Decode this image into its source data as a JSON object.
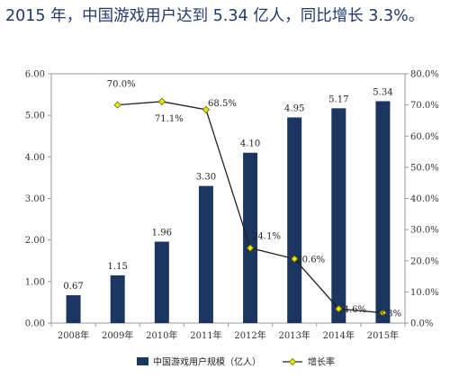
{
  "headline": "2015 年，中国游戏用户达到 5.34 亿人，同比增长 3.3%。",
  "colors": {
    "bar": "#1c3662",
    "line": "#222222",
    "marker": "#e8e600",
    "marker_stroke": "#6b6b00",
    "frame": "#9a9a9a",
    "grid": "#d9d9d9"
  },
  "chart_data": {
    "type": "bar+line",
    "categories": [
      "2008年",
      "2009年",
      "2010年",
      "2011年",
      "2012年",
      "2013年",
      "2014年",
      "2015年"
    ],
    "series": [
      {
        "name": "中国游戏用户规模（亿人）",
        "type": "bar",
        "axis": "left",
        "values": [
          0.67,
          1.15,
          1.96,
          3.3,
          4.1,
          4.95,
          5.17,
          5.34
        ],
        "labels": [
          "0.67",
          "1.15",
          "1.96",
          "3.30",
          "4.10",
          "4.95",
          "5.17",
          "5.34"
        ]
      },
      {
        "name": "增长率",
        "type": "line",
        "axis": "right",
        "values": [
          null,
          70.0,
          71.1,
          68.5,
          24.1,
          20.6,
          4.6,
          3.3
        ],
        "labels": [
          null,
          "70.0%",
          "71.1%",
          "68.5%",
          "24.1%",
          "20.6%",
          "4.6%",
          "3.3%"
        ]
      }
    ],
    "y_left": {
      "min": 0,
      "max": 6,
      "ticks": [
        0,
        1,
        2,
        3,
        4,
        5,
        6
      ],
      "tick_labels": [
        "0.00",
        "1.00",
        "2.00",
        "3.00",
        "4.00",
        "5.00",
        "6.00"
      ]
    },
    "y_right": {
      "min": 0,
      "max": 80,
      "ticks": [
        0,
        10,
        20,
        30,
        40,
        50,
        60,
        70,
        80
      ],
      "tick_labels": [
        "0.0%",
        "10.0%",
        "20.0%",
        "30.0%",
        "40.0%",
        "50.0%",
        "60.0%",
        "70.0%",
        "80.0%"
      ]
    },
    "legend": {
      "position": "bottom",
      "items": [
        "中国游戏用户规模（亿人）",
        "增长率"
      ]
    }
  }
}
